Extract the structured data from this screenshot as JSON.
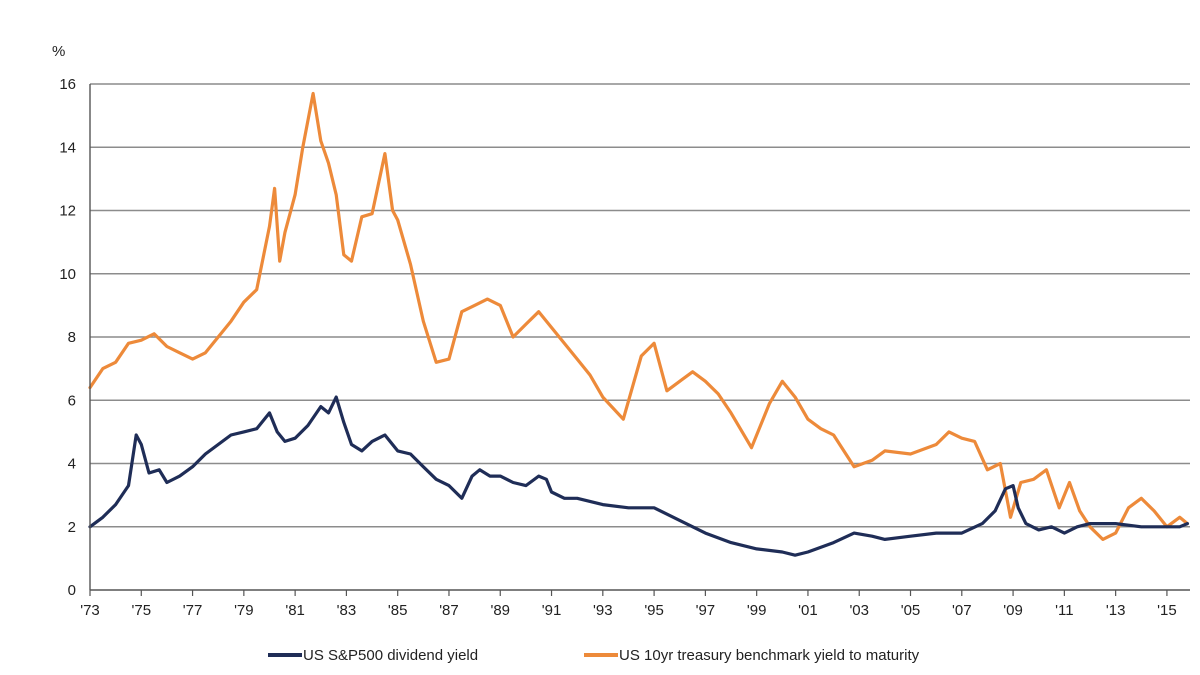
{
  "chart_data": {
    "type": "line",
    "title": "",
    "xlabel": "",
    "ylabel": "%",
    "xlim": [
      1973,
      2015.9
    ],
    "ylim": [
      0,
      16
    ],
    "grid": "horizontal",
    "legend_position": "bottom",
    "y_ticks": [
      0,
      2,
      4,
      6,
      8,
      10,
      12,
      14,
      16
    ],
    "x_ticks": [
      {
        "value": 1973,
        "label": "'73"
      },
      {
        "value": 1975,
        "label": "'75"
      },
      {
        "value": 1977,
        "label": "'77"
      },
      {
        "value": 1979,
        "label": "'79"
      },
      {
        "value": 1981,
        "label": "'81"
      },
      {
        "value": 1983,
        "label": "'83"
      },
      {
        "value": 1985,
        "label": "'85"
      },
      {
        "value": 1987,
        "label": "'87"
      },
      {
        "value": 1989,
        "label": "'89"
      },
      {
        "value": 1991,
        "label": "'91"
      },
      {
        "value": 1993,
        "label": "'93"
      },
      {
        "value": 1995,
        "label": "'95"
      },
      {
        "value": 1997,
        "label": "'97"
      },
      {
        "value": 1999,
        "label": "'99"
      },
      {
        "value": 2001,
        "label": "'01"
      },
      {
        "value": 2003,
        "label": "'03"
      },
      {
        "value": 2005,
        "label": "'05"
      },
      {
        "value": 2007,
        "label": "'07"
      },
      {
        "value": 2009,
        "label": "'09"
      },
      {
        "value": 2011,
        "label": "'11"
      },
      {
        "value": 2013,
        "label": "'13"
      },
      {
        "value": 2015,
        "label": "'15"
      }
    ],
    "series": [
      {
        "name": "US S&P500 dividend yield",
        "color": "#1f2d57",
        "x": [
          1973.0,
          1973.5,
          1974.0,
          1974.5,
          1974.8,
          1975.0,
          1975.3,
          1975.7,
          1976.0,
          1976.5,
          1977.0,
          1977.5,
          1978.0,
          1978.5,
          1979.0,
          1979.5,
          1980.0,
          1980.3,
          1980.6,
          1981.0,
          1981.5,
          1982.0,
          1982.3,
          1982.6,
          1982.9,
          1983.2,
          1983.6,
          1984.0,
          1984.5,
          1985.0,
          1985.5,
          1986.0,
          1986.5,
          1987.0,
          1987.5,
          1987.9,
          1988.2,
          1988.6,
          1989.0,
          1989.5,
          1990.0,
          1990.5,
          1990.8,
          1991.0,
          1991.5,
          1992.0,
          1993.0,
          1994.0,
          1995.0,
          1996.0,
          1997.0,
          1998.0,
          1999.0,
          2000.0,
          2000.5,
          2001.0,
          2002.0,
          2002.8,
          2003.5,
          2004.0,
          2005.0,
          2006.0,
          2007.0,
          2007.8,
          2008.3,
          2008.7,
          2009.0,
          2009.2,
          2009.5,
          2010.0,
          2010.5,
          2011.0,
          2011.5,
          2012.0,
          2013.0,
          2014.0,
          2015.0,
          2015.5,
          2015.8
        ],
        "values": [
          2.0,
          2.3,
          2.7,
          3.3,
          4.9,
          4.6,
          3.7,
          3.8,
          3.4,
          3.6,
          3.9,
          4.3,
          4.6,
          4.9,
          5.0,
          5.1,
          5.6,
          5.0,
          4.7,
          4.8,
          5.2,
          5.8,
          5.6,
          6.1,
          5.3,
          4.6,
          4.4,
          4.7,
          4.9,
          4.4,
          4.3,
          3.9,
          3.5,
          3.3,
          2.9,
          3.6,
          3.8,
          3.6,
          3.6,
          3.4,
          3.3,
          3.6,
          3.5,
          3.1,
          2.9,
          2.9,
          2.7,
          2.6,
          2.6,
          2.2,
          1.8,
          1.5,
          1.3,
          1.2,
          1.1,
          1.2,
          1.5,
          1.8,
          1.7,
          1.6,
          1.7,
          1.8,
          1.8,
          2.1,
          2.5,
          3.2,
          3.3,
          2.6,
          2.1,
          1.9,
          2.0,
          1.8,
          2.0,
          2.1,
          2.1,
          2.0,
          2.0,
          2.0,
          2.1
        ]
      },
      {
        "name": "US 10yr treasury benchmark yield to maturity",
        "color": "#ed8a3a",
        "x": [
          1973.0,
          1973.5,
          1974.0,
          1974.5,
          1975.0,
          1975.5,
          1976.0,
          1976.5,
          1977.0,
          1977.5,
          1978.0,
          1978.5,
          1979.0,
          1979.5,
          1980.0,
          1980.2,
          1980.4,
          1980.6,
          1981.0,
          1981.3,
          1981.7,
          1982.0,
          1982.3,
          1982.6,
          1982.9,
          1983.2,
          1983.6,
          1984.0,
          1984.5,
          1984.8,
          1985.0,
          1985.5,
          1986.0,
          1986.5,
          1987.0,
          1987.5,
          1988.0,
          1988.5,
          1989.0,
          1989.5,
          1990.0,
          1990.5,
          1991.0,
          1992.0,
          1992.5,
          1993.0,
          1993.8,
          1994.5,
          1995.0,
          1995.5,
          1996.0,
          1996.5,
          1997.0,
          1997.5,
          1998.0,
          1998.8,
          1999.5,
          2000.0,
          2000.5,
          2001.0,
          2001.5,
          2002.0,
          2002.8,
          2003.5,
          2004.0,
          2005.0,
          2006.0,
          2006.5,
          2007.0,
          2007.5,
          2008.0,
          2008.5,
          2008.9,
          2009.3,
          2009.8,
          2010.3,
          2010.8,
          2011.2,
          2011.6,
          2012.0,
          2012.5,
          2013.0,
          2013.5,
          2014.0,
          2014.5,
          2015.0,
          2015.5,
          2015.8
        ],
        "values": [
          6.4,
          7.0,
          7.2,
          7.8,
          7.9,
          8.1,
          7.7,
          7.5,
          7.3,
          7.5,
          8.0,
          8.5,
          9.1,
          9.5,
          11.5,
          12.7,
          10.4,
          11.3,
          12.5,
          14.0,
          15.7,
          14.2,
          13.5,
          12.5,
          10.6,
          10.4,
          11.8,
          11.9,
          13.8,
          12.0,
          11.7,
          10.3,
          8.5,
          7.2,
          7.3,
          8.8,
          9.0,
          9.2,
          9.0,
          8.0,
          8.4,
          8.8,
          8.3,
          7.3,
          6.8,
          6.1,
          5.4,
          7.4,
          7.8,
          6.3,
          6.6,
          6.9,
          6.6,
          6.2,
          5.6,
          4.5,
          5.9,
          6.6,
          6.1,
          5.4,
          5.1,
          4.9,
          3.9,
          4.1,
          4.4,
          4.3,
          4.6,
          5.0,
          4.8,
          4.7,
          3.8,
          4.0,
          2.3,
          3.4,
          3.5,
          3.8,
          2.6,
          3.4,
          2.5,
          2.0,
          1.6,
          1.8,
          2.6,
          2.9,
          2.5,
          2.0,
          2.3,
          2.1
        ]
      }
    ]
  }
}
